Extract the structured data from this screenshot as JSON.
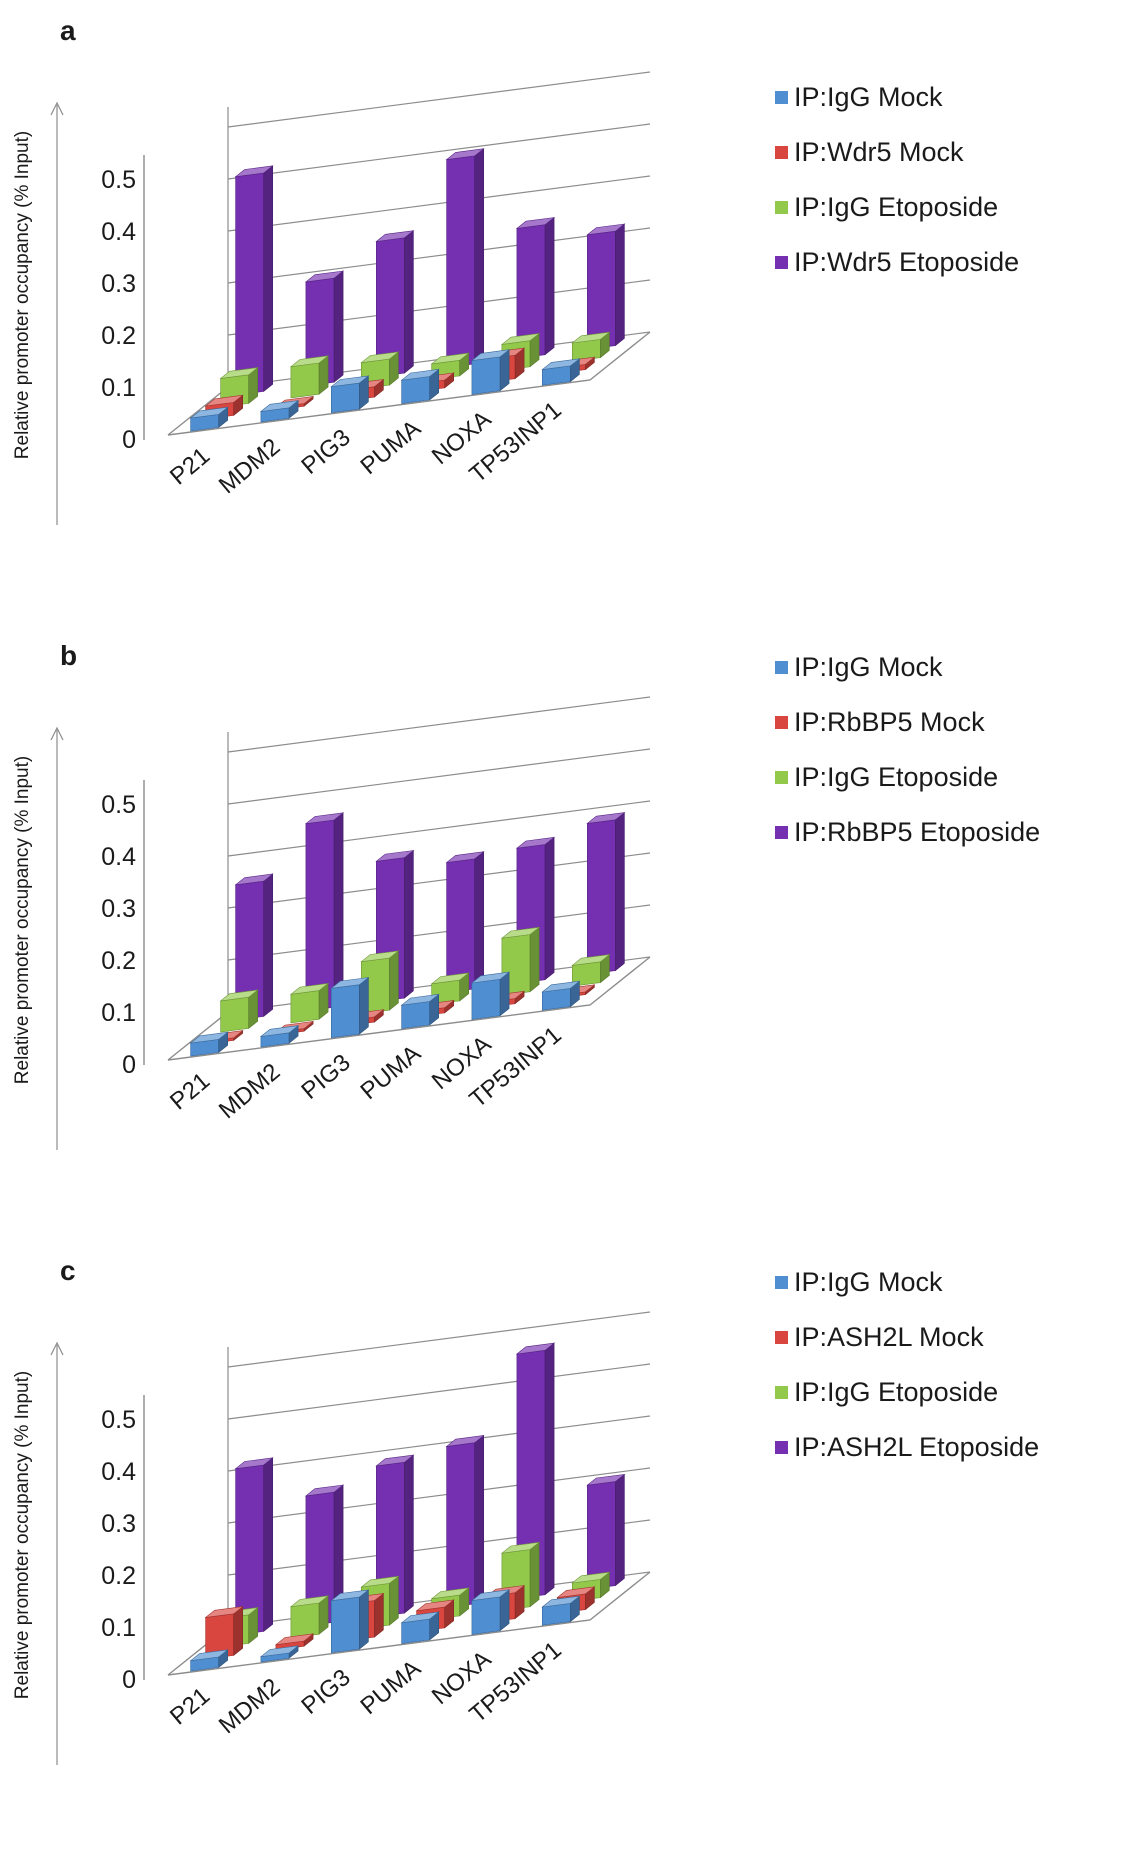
{
  "series_colors": [
    "#4f8ed1",
    "#d9453f",
    "#92c94a",
    "#7430b0"
  ],
  "chart_data": [
    {
      "panel": "a",
      "type": "bar3d",
      "ylabel": "Relative promoter occupancy (% Input)",
      "categories": [
        "P21",
        "MDM2",
        "PIG3",
        "PUMA",
        "NOXA",
        "TP53INP1"
      ],
      "yticks": [
        "0",
        "0.1",
        "0.2",
        "0.3",
        "0.4",
        "0.5"
      ],
      "ylim": [
        0,
        0.5
      ],
      "series": [
        {
          "name": "IP:IgG Mock",
          "values": [
            0.025,
            0.02,
            0.05,
            0.045,
            0.065,
            0.03
          ]
        },
        {
          "name": "IP:Wdr5 Mock",
          "values": [
            0.025,
            0.005,
            0.02,
            0.015,
            0.045,
            0.01
          ]
        },
        {
          "name": "IP:IgG Etoposide",
          "values": [
            0.055,
            0.06,
            0.05,
            0.03,
            0.05,
            0.035
          ]
        },
        {
          "name": "IP:Wdr5 Etoposide",
          "values": [
            0.42,
            0.2,
            0.26,
            0.4,
            0.25,
            0.22
          ]
        }
      ]
    },
    {
      "panel": "b",
      "type": "bar3d",
      "ylabel": "Relative promoter occupancy (% Input)",
      "categories": [
        "P21",
        "MDM2",
        "PIG3",
        "PUMA",
        "NOXA",
        "TP53INP1"
      ],
      "yticks": [
        "0",
        "0.1",
        "0.2",
        "0.3",
        "0.4",
        "0.5"
      ],
      "ylim": [
        0,
        0.5
      ],
      "series": [
        {
          "name": "IP:IgG Mock",
          "values": [
            0.025,
            0.02,
            0.095,
            0.045,
            0.07,
            0.035
          ]
        },
        {
          "name": "IP:RbBP5 Mock",
          "values": [
            0.005,
            0.005,
            0.01,
            0.01,
            0.01,
            0.005
          ]
        },
        {
          "name": "IP:IgG Etoposide",
          "values": [
            0.06,
            0.055,
            0.1,
            0.04,
            0.11,
            0.04
          ]
        },
        {
          "name": "IP:RbBP5 Etoposide",
          "values": [
            0.26,
            0.36,
            0.27,
            0.25,
            0.26,
            0.29
          ]
        }
      ]
    },
    {
      "panel": "c",
      "type": "bar3d",
      "ylabel": "Relative promoter occupancy (% Input)",
      "categories": [
        "P21",
        "MDM2",
        "PIG3",
        "PUMA",
        "NOXA",
        "TP53INP1"
      ],
      "yticks": [
        "0",
        "0.1",
        "0.2",
        "0.3",
        "0.4",
        "0.5"
      ],
      "ylim": [
        0,
        0.5
      ],
      "series": [
        {
          "name": "IP:IgG Mock",
          "values": [
            0.02,
            0.01,
            0.1,
            0.04,
            0.065,
            0.035
          ]
        },
        {
          "name": "IP:ASH2L Mock",
          "values": [
            0.08,
            0.01,
            0.07,
            0.04,
            0.05,
            0.03
          ]
        },
        {
          "name": "IP:IgG Etoposide",
          "values": [
            0.055,
            0.06,
            0.08,
            0.04,
            0.11,
            0.035
          ]
        },
        {
          "name": "IP:ASH2L Etoposide",
          "values": [
            0.32,
            0.25,
            0.29,
            0.31,
            0.47,
            0.2
          ]
        }
      ]
    }
  ]
}
